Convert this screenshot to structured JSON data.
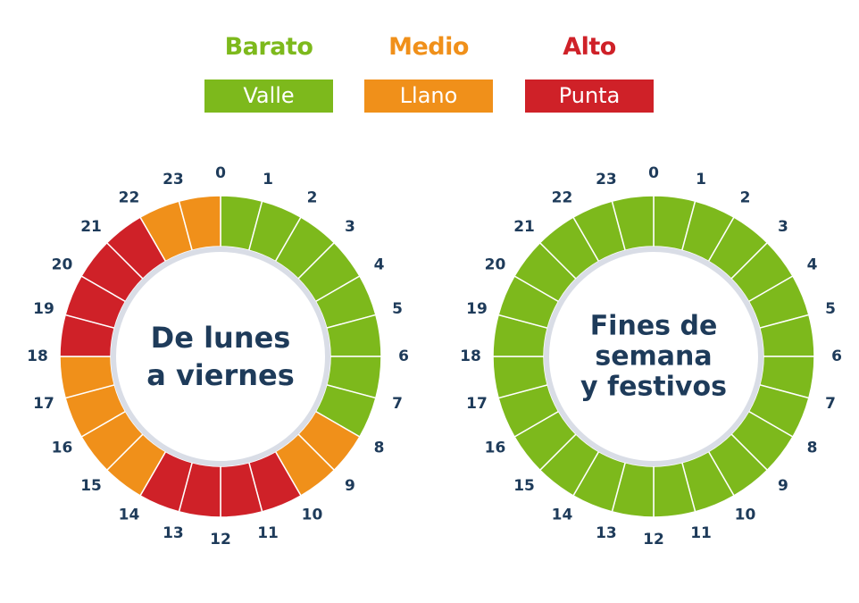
{
  "colors": {
    "valle": "#7db91c",
    "llano": "#f0901a",
    "punta": "#cf2128",
    "text_dark": "#1e3b5a",
    "ring_inner": "#d9dde6"
  },
  "legend": [
    {
      "label": "Barato",
      "period": "Valle",
      "color": "#7db91c"
    },
    {
      "label": "Medio",
      "period": "Llano",
      "color": "#f0901a"
    },
    {
      "label": "Alto",
      "period": "Punta",
      "color": "#cf2128"
    }
  ],
  "wheels": [
    {
      "title_lines": [
        "De lunes",
        "a viernes"
      ],
      "hours": [
        "0",
        "1",
        "2",
        "3",
        "4",
        "5",
        "6",
        "7",
        "8",
        "9",
        "10",
        "11",
        "12",
        "13",
        "14",
        "15",
        "16",
        "17",
        "18",
        "19",
        "20",
        "21",
        "22",
        "23"
      ],
      "periods": [
        "valle",
        "valle",
        "valle",
        "valle",
        "valle",
        "valle",
        "valle",
        "valle",
        "llano",
        "llano",
        "punta",
        "punta",
        "punta",
        "punta",
        "llano",
        "llano",
        "llano",
        "llano",
        "punta",
        "punta",
        "punta",
        "punta",
        "llano",
        "llano"
      ]
    },
    {
      "title_lines": [
        "Fines de",
        "semana",
        "y festivos"
      ],
      "hours": [
        "0",
        "1",
        "2",
        "3",
        "4",
        "5",
        "6",
        "7",
        "8",
        "9",
        "10",
        "11",
        "12",
        "13",
        "14",
        "15",
        "16",
        "17",
        "18",
        "19",
        "20",
        "21",
        "22",
        "23"
      ],
      "periods": [
        "valle",
        "valle",
        "valle",
        "valle",
        "valle",
        "valle",
        "valle",
        "valle",
        "valle",
        "valle",
        "valle",
        "valle",
        "valle",
        "valle",
        "valle",
        "valle",
        "valle",
        "valle",
        "valle",
        "valle",
        "valle",
        "valle",
        "valle",
        "valle"
      ]
    }
  ]
}
